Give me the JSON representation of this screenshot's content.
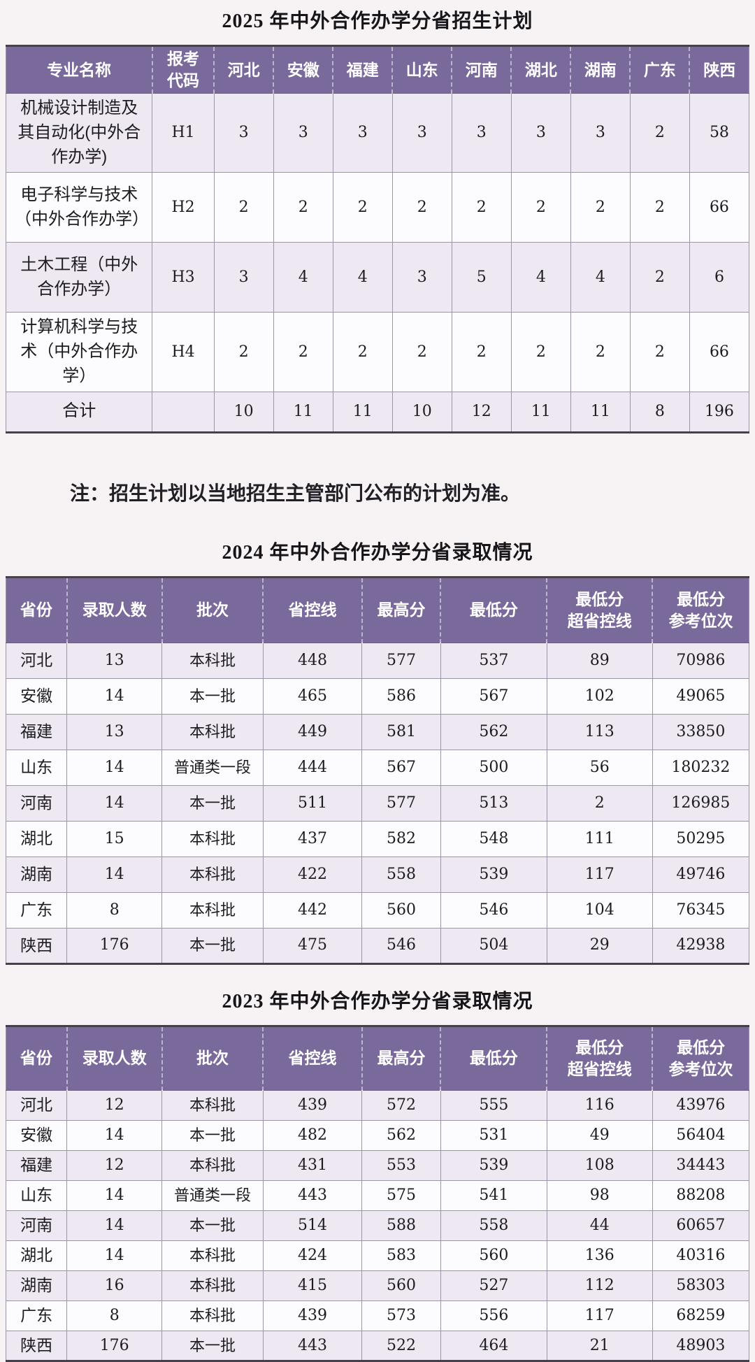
{
  "colors": {
    "header_purple": "#7a6a9c",
    "row_odd_lavender": "#ede8f1",
    "row_even_white": "#fcfbfd"
  },
  "note": "注：招生计划以当地招生主管部门公布的计划为准。",
  "plan_2025": {
    "title": "2025 年中外合作办学分省招生计划",
    "headers": [
      "专业名称",
      "报考\n代码",
      "河北",
      "安徽",
      "福建",
      "山东",
      "河南",
      "湖北",
      "湖南",
      "广东",
      "陕西"
    ],
    "rows": [
      [
        "机械设计制造及其自动化(中外合作办学)",
        "H1",
        "3",
        "3",
        "3",
        "3",
        "3",
        "3",
        "3",
        "2",
        "58"
      ],
      [
        "电子科学与技术（中外合作办学）",
        "H2",
        "2",
        "2",
        "2",
        "2",
        "2",
        "2",
        "2",
        "2",
        "66"
      ],
      [
        "土木工程（中外合作办学）",
        "H3",
        "3",
        "4",
        "4",
        "3",
        "5",
        "4",
        "4",
        "2",
        "6"
      ],
      [
        "计算机科学与技术（中外合作办学）",
        "H4",
        "2",
        "2",
        "2",
        "2",
        "2",
        "2",
        "2",
        "2",
        "66"
      ],
      [
        "合计",
        "",
        "10",
        "11",
        "11",
        "10",
        "12",
        "11",
        "11",
        "8",
        "196"
      ]
    ]
  },
  "admission_2024": {
    "title": "2024 年中外合作办学分省录取情况",
    "headers": [
      "省份",
      "录取人数",
      "批次",
      "省控线",
      "最高分",
      "最低分",
      "最低分\n超省控线",
      "最低分\n参考位次"
    ],
    "rows": [
      [
        "河北",
        "13",
        "本科批",
        "448",
        "577",
        "537",
        "89",
        "70986"
      ],
      [
        "安徽",
        "14",
        "本一批",
        "465",
        "586",
        "567",
        "102",
        "49065"
      ],
      [
        "福建",
        "13",
        "本科批",
        "449",
        "581",
        "562",
        "113",
        "33850"
      ],
      [
        "山东",
        "14",
        "普通类一段",
        "444",
        "567",
        "500",
        "56",
        "180232"
      ],
      [
        "河南",
        "14",
        "本一批",
        "511",
        "577",
        "513",
        "2",
        "126985"
      ],
      [
        "湖北",
        "15",
        "本科批",
        "437",
        "582",
        "548",
        "111",
        "50295"
      ],
      [
        "湖南",
        "14",
        "本科批",
        "422",
        "558",
        "539",
        "117",
        "49746"
      ],
      [
        "广东",
        "8",
        "本科批",
        "442",
        "560",
        "546",
        "104",
        "76345"
      ],
      [
        "陕西",
        "176",
        "本一批",
        "475",
        "546",
        "504",
        "29",
        "42938"
      ]
    ]
  },
  "admission_2023": {
    "title": "2023 年中外合作办学分省录取情况",
    "headers": [
      "省份",
      "录取人数",
      "批次",
      "省控线",
      "最高分",
      "最低分",
      "最低分\n超省控线",
      "最低分\n参考位次"
    ],
    "rows": [
      [
        "河北",
        "12",
        "本科批",
        "439",
        "572",
        "555",
        "116",
        "43976"
      ],
      [
        "安徽",
        "14",
        "本一批",
        "482",
        "562",
        "531",
        "49",
        "56404"
      ],
      [
        "福建",
        "12",
        "本科批",
        "431",
        "553",
        "539",
        "108",
        "34443"
      ],
      [
        "山东",
        "14",
        "普通类一段",
        "443",
        "575",
        "541",
        "98",
        "88208"
      ],
      [
        "河南",
        "14",
        "本一批",
        "514",
        "588",
        "558",
        "44",
        "60657"
      ],
      [
        "湖北",
        "14",
        "本科批",
        "424",
        "583",
        "560",
        "136",
        "40316"
      ],
      [
        "湖南",
        "16",
        "本科批",
        "415",
        "560",
        "527",
        "112",
        "58303"
      ],
      [
        "广东",
        "8",
        "本科批",
        "439",
        "573",
        "556",
        "117",
        "68259"
      ],
      [
        "陕西",
        "176",
        "本一批",
        "443",
        "522",
        "464",
        "21",
        "48903"
      ]
    ]
  }
}
